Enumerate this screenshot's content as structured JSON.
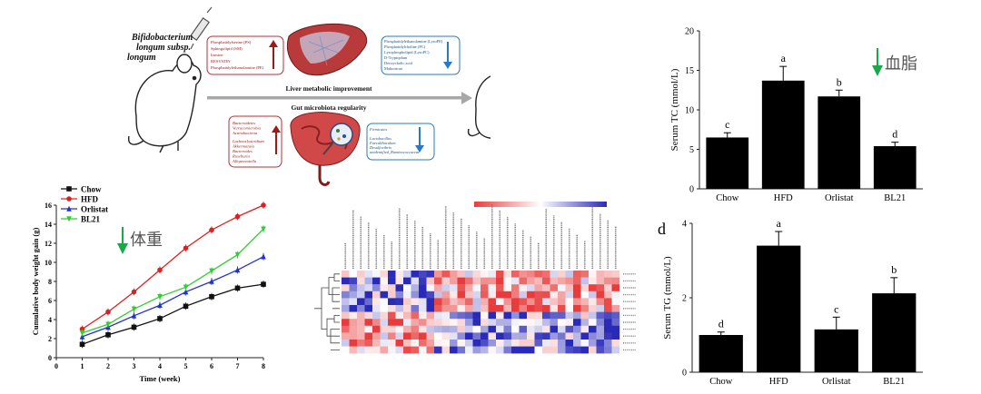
{
  "schematic": {
    "strain_label": [
      "Bifidobacterium",
      "longum subsp.",
      "longum"
    ],
    "liver_up": [
      "Phosphatidylserine (PS)",
      "Sphingolipid (SM)",
      "Inosine",
      "RESVATIN",
      "Phosphatidylethanolamine (PE)"
    ],
    "liver_down": [
      "Phosphatidylethanolamine (LysoPE)",
      "Phosphatidylcholine (PC)",
      "Lysophospholipid (LysoPC)",
      "D-Tryptophan",
      "Deoxycholic acid",
      "Maltotriose"
    ],
    "liver_caption": "Liver metabolic improvement",
    "gut_caption": "Gut microbiota regularity",
    "gut_up": [
      "Bacteroidetes",
      "Verrucomicrobia",
      "Actinobacteria",
      "",
      "Lachnoclostridium",
      "Akkermansia",
      "Bacteroides",
      "Roseburia",
      "Alloprevotella"
    ],
    "gut_down": [
      "Firmicutes",
      "",
      "Lactobacillus",
      "Faecalibaculum",
      "Desulfovibrio",
      "unidentified_Ruminococcaceae"
    ]
  },
  "chart_weight": {
    "chart_data": {
      "type": "line",
      "x": [
        1,
        2,
        3,
        4,
        5,
        6,
        7,
        8
      ],
      "xlim": [
        0,
        8
      ],
      "ylim": [
        0,
        16
      ],
      "xticks": [
        0,
        1,
        2,
        3,
        4,
        5,
        6,
        7,
        8
      ],
      "yticks": [
        0,
        2,
        4,
        6,
        8,
        10,
        12,
        14,
        16
      ],
      "xlabel": "Time (week)",
      "ylabel": "Cumulative body weight gain (g)",
      "legend": "top-left",
      "series": [
        {
          "name": "Chow",
          "color": "#111111",
          "marker": "square",
          "values": [
            1.4,
            2.4,
            3.2,
            4.1,
            5.4,
            6.4,
            7.3,
            7.7
          ]
        },
        {
          "name": "HFD",
          "color": "#e02020",
          "marker": "circle",
          "values": [
            3.0,
            4.8,
            6.9,
            9.2,
            11.5,
            13.4,
            14.8,
            16.0
          ]
        },
        {
          "name": "Orlistat",
          "color": "#2233cc",
          "marker": "triangle-up",
          "values": [
            2.2,
            3.2,
            4.4,
            5.5,
            6.9,
            8.0,
            9.2,
            10.6
          ]
        },
        {
          "name": "BL21",
          "color": "#33cc33",
          "marker": "triangle-down",
          "values": [
            2.6,
            3.5,
            5.1,
            6.4,
            7.4,
            9.1,
            10.8,
            13.5
          ]
        }
      ]
    },
    "annotation": "体重"
  },
  "heatmap": {
    "chart_data": {
      "type": "heatmap",
      "rows": 12,
      "cols": 36,
      "scale_low_color": "#e83c3c",
      "scale_mid_color": "#ffffff",
      "scale_high_color": "#2a2ab8"
    }
  },
  "chart_tc": {
    "chart_data": {
      "type": "bar",
      "categories": [
        "Chow",
        "HFD",
        "Orlistat",
        "BL21"
      ],
      "values": [
        6.5,
        13.7,
        11.7,
        5.4
      ],
      "errors": [
        0.6,
        1.8,
        0.8,
        0.5
      ],
      "letters": [
        "c",
        "a",
        "b",
        "d"
      ],
      "ylabel": "Serum TC (mmol/L)",
      "ylim": [
        0,
        20
      ],
      "yticks": [
        0,
        5,
        10,
        15,
        20
      ]
    },
    "annotation": "血脂"
  },
  "chart_tg": {
    "panel_label": "d",
    "chart_data": {
      "type": "bar",
      "categories": [
        "Chow",
        "HFD",
        "Orlistat",
        "BL21"
      ],
      "values": [
        1.0,
        3.4,
        1.15,
        2.12
      ],
      "errors": [
        0.08,
        0.38,
        0.33,
        0.42
      ],
      "letters": [
        "d",
        "a",
        "c",
        "b"
      ],
      "ylabel": "Serum TG (mmol/L)",
      "ylim": [
        0,
        4
      ],
      "yticks": [
        0,
        2,
        4
      ]
    }
  }
}
